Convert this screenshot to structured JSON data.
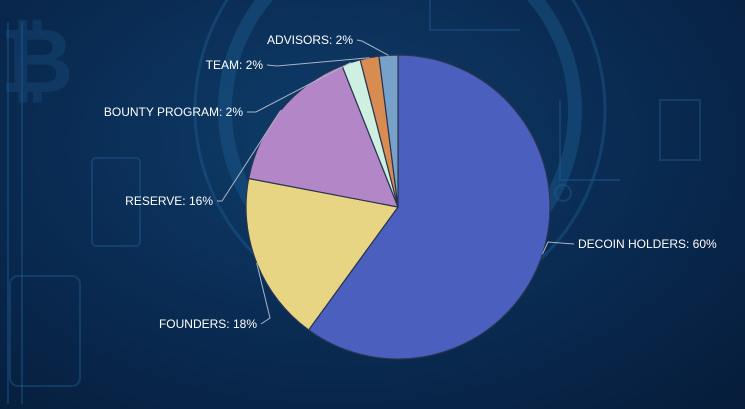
{
  "colors": {
    "background": "#0a2d55",
    "slice_outline": "#2a3550",
    "label_text": "#ffffff",
    "leader_line": "#a9b4c8"
  },
  "chart_data": {
    "type": "pie",
    "legend": "none",
    "slices": [
      {
        "label": "DECOIN HOLDERS: 60%",
        "category": "DECOIN HOLDERS",
        "value": 60,
        "color": "#4a5fbe"
      },
      {
        "label": "FOUNDERS: 18%",
        "category": "FOUNDERS",
        "value": 18,
        "color": "#e8d583"
      },
      {
        "label": "RESERVE: 16%",
        "category": "RESERVE",
        "value": 16,
        "color": "#b386c8"
      },
      {
        "label": "BOUNTY PROGRAM: 2%",
        "category": "BOUNTY PROGRAM",
        "value": 2,
        "color": "#cdf0e0"
      },
      {
        "label": "TEAM: 2%",
        "category": "TEAM",
        "value": 2,
        "color": "#d98c52"
      },
      {
        "label": "ADVISORS: 2%",
        "category": "ADVISORS",
        "value": 2,
        "color": "#77a1c9"
      }
    ]
  }
}
